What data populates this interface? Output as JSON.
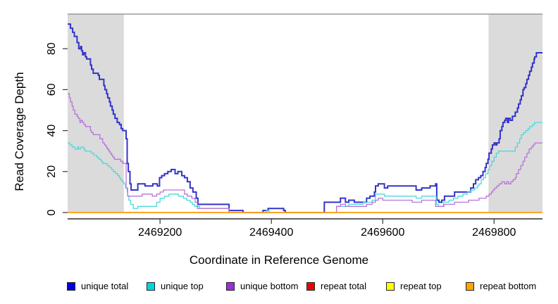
{
  "chart_data": {
    "type": "line",
    "subtype": "step",
    "title": "",
    "xlabel": "Coordinate in Reference Genome",
    "ylabel": "Read Coverage Depth",
    "xlim": [
      2469034,
      2469887
    ],
    "ylim": [
      0,
      96.9
    ],
    "x_ticks": [
      2469200,
      2469400,
      2469600,
      2469800
    ],
    "y_ticks": [
      0,
      20,
      40,
      60,
      80
    ],
    "grid": false,
    "legend_position": "bottom",
    "shaded_regions": [
      {
        "x0": 2469034,
        "x1": 2469135,
        "color": "#dbdbdb"
      },
      {
        "x0": 2469790,
        "x1": 2469887,
        "color": "#dbdbdb"
      }
    ],
    "series": [
      {
        "name": "unique total",
        "color": "#3333cc",
        "width": 2,
        "points": [
          [
            2469034,
            92
          ],
          [
            2469039,
            90
          ],
          [
            2469043,
            88
          ],
          [
            2469046,
            86
          ],
          [
            2469051,
            83
          ],
          [
            2469054,
            80
          ],
          [
            2469057,
            81
          ],
          [
            2469059,
            79
          ],
          [
            2469061,
            77
          ],
          [
            2469063,
            78
          ],
          [
            2469066,
            76
          ],
          [
            2469068,
            75
          ],
          [
            2469075,
            72
          ],
          [
            2469077,
            70
          ],
          [
            2469080,
            68
          ],
          [
            2469089,
            67
          ],
          [
            2469091,
            65
          ],
          [
            2469099,
            62
          ],
          [
            2469101,
            60
          ],
          [
            2469104,
            58
          ],
          [
            2469106,
            56
          ],
          [
            2469109,
            54
          ],
          [
            2469111,
            52
          ],
          [
            2469114,
            50
          ],
          [
            2469116,
            48
          ],
          [
            2469119,
            46
          ],
          [
            2469123,
            44
          ],
          [
            2469127,
            43
          ],
          [
            2469130,
            41
          ],
          [
            2469133,
            40
          ],
          [
            2469139,
            36
          ],
          [
            2469141,
            24
          ],
          [
            2469143,
            20
          ],
          [
            2469146,
            14
          ],
          [
            2469148,
            11
          ],
          [
            2469160,
            14
          ],
          [
            2469173,
            13
          ],
          [
            2469187,
            14
          ],
          [
            2469195,
            13
          ],
          [
            2469199,
            17
          ],
          [
            2469203,
            18
          ],
          [
            2469208,
            19
          ],
          [
            2469214,
            20
          ],
          [
            2469220,
            21
          ],
          [
            2469227,
            19
          ],
          [
            2469232,
            20
          ],
          [
            2469239,
            18
          ],
          [
            2469244,
            17
          ],
          [
            2469249,
            15
          ],
          [
            2469254,
            12
          ],
          [
            2469259,
            10
          ],
          [
            2469265,
            7
          ],
          [
            2469268,
            4
          ],
          [
            2469324,
            1
          ],
          [
            2469349,
            0
          ],
          [
            2469385,
            1
          ],
          [
            2469394,
            2
          ],
          [
            2469422,
            1
          ],
          [
            2469425,
            0
          ],
          [
            2469495,
            5
          ],
          [
            2469524,
            7
          ],
          [
            2469533,
            5
          ],
          [
            2469539,
            6
          ],
          [
            2469549,
            5
          ],
          [
            2469571,
            7
          ],
          [
            2469577,
            8
          ],
          [
            2469585,
            10
          ],
          [
            2469587,
            13
          ],
          [
            2469592,
            14
          ],
          [
            2469603,
            12
          ],
          [
            2469609,
            13
          ],
          [
            2469660,
            11
          ],
          [
            2469670,
            12
          ],
          [
            2469685,
            13
          ],
          [
            2469695,
            14
          ],
          [
            2469697,
            6
          ],
          [
            2469701,
            5
          ],
          [
            2469706,
            6
          ],
          [
            2469711,
            8
          ],
          [
            2469729,
            10
          ],
          [
            2469758,
            12
          ],
          [
            2469763,
            14
          ],
          [
            2469767,
            16
          ],
          [
            2469772,
            17
          ],
          [
            2469776,
            18
          ],
          [
            2469780,
            20
          ],
          [
            2469784,
            22
          ],
          [
            2469786,
            24
          ],
          [
            2469789,
            26
          ],
          [
            2469791,
            29
          ],
          [
            2469795,
            31
          ],
          [
            2469797,
            33
          ],
          [
            2469800,
            34
          ],
          [
            2469803,
            33
          ],
          [
            2469805,
            34
          ],
          [
            2469809,
            36
          ],
          [
            2469811,
            40
          ],
          [
            2469814,
            42
          ],
          [
            2469816,
            44
          ],
          [
            2469819,
            45
          ],
          [
            2469821,
            46
          ],
          [
            2469824,
            44
          ],
          [
            2469826,
            46
          ],
          [
            2469829,
            45
          ],
          [
            2469833,
            47
          ],
          [
            2469838,
            49
          ],
          [
            2469842,
            51
          ],
          [
            2469844,
            53
          ],
          [
            2469847,
            55
          ],
          [
            2469849,
            57
          ],
          [
            2469852,
            60
          ],
          [
            2469854,
            61
          ],
          [
            2469857,
            63
          ],
          [
            2469859,
            65
          ],
          [
            2469862,
            67
          ],
          [
            2469864,
            69
          ],
          [
            2469867,
            71
          ],
          [
            2469869,
            73
          ],
          [
            2469872,
            75
          ],
          [
            2469873,
            76
          ],
          [
            2469876,
            78
          ],
          [
            2469887,
            78
          ]
        ]
      },
      {
        "name": "unique top",
        "color": "#4ed9db",
        "width": 1.3,
        "points": [
          [
            2469034,
            34
          ],
          [
            2469038,
            33
          ],
          [
            2469042,
            32
          ],
          [
            2469047,
            31
          ],
          [
            2469052,
            32
          ],
          [
            2469054,
            31
          ],
          [
            2469058,
            32
          ],
          [
            2469063,
            31
          ],
          [
            2469065,
            30
          ],
          [
            2469076,
            29
          ],
          [
            2469081,
            28
          ],
          [
            2469086,
            27
          ],
          [
            2469090,
            26
          ],
          [
            2469094,
            25
          ],
          [
            2469097,
            24
          ],
          [
            2469105,
            23
          ],
          [
            2469109,
            22
          ],
          [
            2469113,
            21
          ],
          [
            2469116,
            20
          ],
          [
            2469120,
            19
          ],
          [
            2469124,
            18
          ],
          [
            2469127,
            17
          ],
          [
            2469129,
            16
          ],
          [
            2469132,
            15
          ],
          [
            2469135,
            14
          ],
          [
            2469138,
            12
          ],
          [
            2469141,
            10
          ],
          [
            2469142,
            8
          ],
          [
            2469144,
            6
          ],
          [
            2469147,
            4
          ],
          [
            2469152,
            2
          ],
          [
            2469160,
            3
          ],
          [
            2469194,
            5
          ],
          [
            2469200,
            7
          ],
          [
            2469208,
            8
          ],
          [
            2469216,
            9
          ],
          [
            2469233,
            8
          ],
          [
            2469242,
            7
          ],
          [
            2469248,
            6
          ],
          [
            2469254,
            5
          ],
          [
            2469258,
            4
          ],
          [
            2469262,
            3
          ],
          [
            2469271,
            2
          ],
          [
            2469324,
            0
          ],
          [
            2469391,
            1
          ],
          [
            2469396,
            0
          ],
          [
            2469517,
            3
          ],
          [
            2469539,
            4
          ],
          [
            2469565,
            5
          ],
          [
            2469581,
            6
          ],
          [
            2469587,
            9
          ],
          [
            2469603,
            8
          ],
          [
            2469660,
            7
          ],
          [
            2469670,
            8
          ],
          [
            2469696,
            4
          ],
          [
            2469700,
            3
          ],
          [
            2469709,
            5
          ],
          [
            2469719,
            6
          ],
          [
            2469727,
            7
          ],
          [
            2469735,
            8
          ],
          [
            2469744,
            9
          ],
          [
            2469752,
            10
          ],
          [
            2469758,
            11
          ],
          [
            2469765,
            12
          ],
          [
            2469770,
            13
          ],
          [
            2469773,
            14
          ],
          [
            2469777,
            16
          ],
          [
            2469781,
            17
          ],
          [
            2469785,
            19
          ],
          [
            2469789,
            21
          ],
          [
            2469792,
            23
          ],
          [
            2469796,
            25
          ],
          [
            2469800,
            27
          ],
          [
            2469804,
            29
          ],
          [
            2469808,
            30
          ],
          [
            2469838,
            32
          ],
          [
            2469842,
            34
          ],
          [
            2469846,
            36
          ],
          [
            2469849,
            38
          ],
          [
            2469853,
            39
          ],
          [
            2469857,
            40
          ],
          [
            2469861,
            41
          ],
          [
            2469864,
            42
          ],
          [
            2469869,
            43
          ],
          [
            2469873,
            44
          ],
          [
            2469887,
            44
          ]
        ]
      },
      {
        "name": "unique bottom",
        "color": "#b973db",
        "width": 1.3,
        "points": [
          [
            2469034,
            58
          ],
          [
            2469037,
            56
          ],
          [
            2469039,
            54
          ],
          [
            2469042,
            52
          ],
          [
            2469044,
            50
          ],
          [
            2469047,
            48
          ],
          [
            2469051,
            47
          ],
          [
            2469053,
            46
          ],
          [
            2469056,
            44
          ],
          [
            2469058,
            45
          ],
          [
            2469061,
            44
          ],
          [
            2469063,
            43
          ],
          [
            2469066,
            42
          ],
          [
            2469075,
            40
          ],
          [
            2469077,
            39
          ],
          [
            2469080,
            38
          ],
          [
            2469092,
            36
          ],
          [
            2469097,
            34
          ],
          [
            2469100,
            33
          ],
          [
            2469103,
            32
          ],
          [
            2469105,
            31
          ],
          [
            2469108,
            30
          ],
          [
            2469110,
            29
          ],
          [
            2469113,
            28
          ],
          [
            2469115,
            27
          ],
          [
            2469118,
            26
          ],
          [
            2469129,
            25
          ],
          [
            2469133,
            24
          ],
          [
            2469139,
            12
          ],
          [
            2469142,
            8
          ],
          [
            2469168,
            9
          ],
          [
            2469186,
            8
          ],
          [
            2469194,
            9
          ],
          [
            2469200,
            10
          ],
          [
            2469206,
            11
          ],
          [
            2469244,
            9
          ],
          [
            2469249,
            8
          ],
          [
            2469257,
            7
          ],
          [
            2469263,
            5
          ],
          [
            2469267,
            2
          ],
          [
            2469324,
            0
          ],
          [
            2469517,
            3
          ],
          [
            2469524,
            4
          ],
          [
            2469533,
            3
          ],
          [
            2469571,
            4
          ],
          [
            2469581,
            5
          ],
          [
            2469587,
            6
          ],
          [
            2469592,
            7
          ],
          [
            2469600,
            6
          ],
          [
            2469653,
            5
          ],
          [
            2469670,
            6
          ],
          [
            2469695,
            3
          ],
          [
            2469710,
            4
          ],
          [
            2469729,
            5
          ],
          [
            2469754,
            6
          ],
          [
            2469773,
            7
          ],
          [
            2469786,
            8
          ],
          [
            2469791,
            9
          ],
          [
            2469795,
            10
          ],
          [
            2469798,
            11
          ],
          [
            2469801,
            12
          ],
          [
            2469805,
            13
          ],
          [
            2469809,
            14
          ],
          [
            2469814,
            15
          ],
          [
            2469819,
            14
          ],
          [
            2469823,
            15
          ],
          [
            2469826,
            14
          ],
          [
            2469830,
            15
          ],
          [
            2469834,
            16
          ],
          [
            2469838,
            17
          ],
          [
            2469840,
            19
          ],
          [
            2469844,
            21
          ],
          [
            2469848,
            23
          ],
          [
            2469852,
            25
          ],
          [
            2469855,
            27
          ],
          [
            2469859,
            29
          ],
          [
            2469863,
            31
          ],
          [
            2469867,
            32
          ],
          [
            2469870,
            33
          ],
          [
            2469873,
            34
          ],
          [
            2469887,
            34
          ]
        ]
      },
      {
        "name": "repeat total",
        "color": "#dd0000",
        "width": 1.3,
        "points": [
          [
            2469034,
            0
          ],
          [
            2469887,
            0
          ]
        ]
      },
      {
        "name": "repeat top",
        "color": "#ffff00",
        "width": 1.3,
        "points": [
          [
            2469034,
            0
          ],
          [
            2469887,
            0
          ]
        ]
      },
      {
        "name": "repeat bottom",
        "color": "#ff9f1a",
        "width": 1.8,
        "points": [
          [
            2469034,
            0
          ],
          [
            2469887,
            0
          ]
        ]
      }
    ]
  },
  "legend": {
    "items": [
      {
        "label": "unique total",
        "color": "#0000dd"
      },
      {
        "label": "unique top",
        "color": "#00d5dd"
      },
      {
        "label": "unique bottom",
        "color": "#9b30d9"
      },
      {
        "label": "repeat total",
        "color": "#ee0000"
      },
      {
        "label": "repeat top",
        "color": "#ffff00"
      },
      {
        "label": "repeat bottom",
        "color": "#ffa500"
      }
    ]
  }
}
